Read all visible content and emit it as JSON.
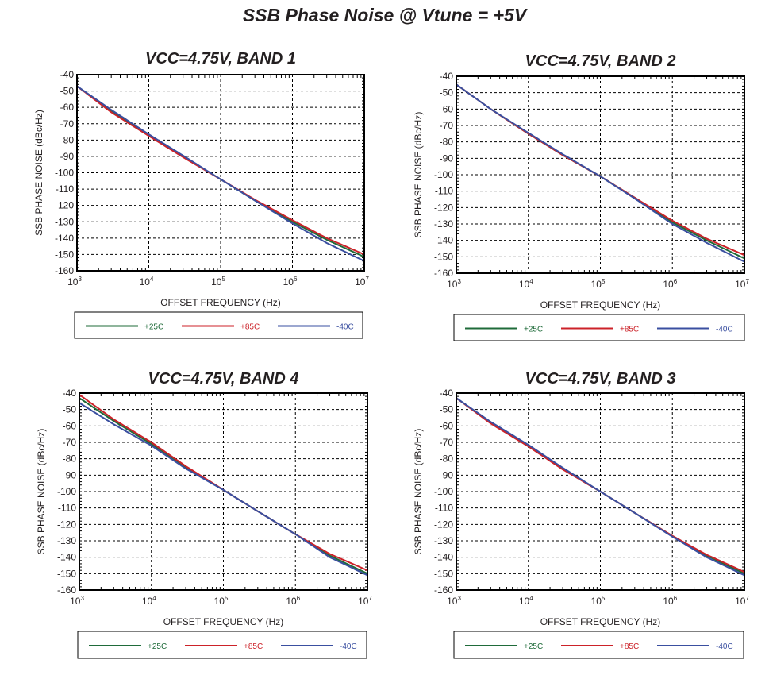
{
  "title": "SSB Phase Noise @ Vtune = +5V",
  "colors": {
    "+25C": "#1f6b3a",
    "+85C": "#cc2229",
    "-40C": "#3a4fa0"
  },
  "chart_data": [
    {
      "type": "line",
      "title": "VCC=4.75V, BAND 1",
      "xlabel": "OFFSET FREQUENCY (Hz)",
      "ylabel": "SSB PHASE NOISE (dBc/Hz)",
      "xscale": "log",
      "xlim": [
        1000,
        10000000
      ],
      "ylim": [
        -160,
        -40
      ],
      "xticks": [
        "10^3",
        "10^4",
        "10^5",
        "10^6",
        "10^7"
      ],
      "yticks": [
        -40,
        -50,
        -60,
        -70,
        -80,
        -90,
        -100,
        -110,
        -120,
        -130,
        -140,
        -150,
        -160
      ],
      "grid": true,
      "legend": "bottom",
      "x": [
        1000,
        3000,
        10000,
        30000,
        100000,
        300000,
        1000000,
        3000000,
        10000000
      ],
      "series": [
        {
          "name": "+25C",
          "values": [
            -47,
            -62,
            -77,
            -90,
            -104,
            -117,
            -130,
            -141,
            -151.5
          ]
        },
        {
          "name": "+85C",
          "values": [
            -47,
            -63,
            -77.5,
            -90.5,
            -104,
            -116.5,
            -129,
            -140,
            -150
          ]
        },
        {
          "name": "-40C",
          "values": [
            -47,
            -61.5,
            -76.5,
            -89.5,
            -104,
            -117,
            -131,
            -143,
            -154
          ]
        }
      ]
    },
    {
      "type": "line",
      "title": "VCC=4.75V, BAND 2",
      "xlabel": "OFFSET FREQUENCY (Hz)",
      "ylabel": "SSB PHASE NOISE (dBc/Hz)",
      "xscale": "log",
      "xlim": [
        1000,
        10000000
      ],
      "ylim": [
        -160,
        -40
      ],
      "xticks": [
        "10^3",
        "10^4",
        "10^5",
        "10^6",
        "10^7"
      ],
      "yticks": [
        -40,
        -50,
        -60,
        -70,
        -80,
        -90,
        -100,
        -110,
        -120,
        -130,
        -140,
        -150,
        -160
      ],
      "grid": true,
      "legend": "bottom",
      "x": [
        1000,
        3000,
        10000,
        30000,
        100000,
        300000,
        1000000,
        3000000,
        10000000
      ],
      "series": [
        {
          "name": "+25C",
          "values": [
            -45,
            -60,
            -75,
            -88,
            -101,
            -114,
            -129,
            -140,
            -151
          ]
        },
        {
          "name": "+85C",
          "values": [
            -45,
            -60,
            -75,
            -88,
            -101,
            -114,
            -128,
            -139,
            -149
          ]
        },
        {
          "name": "-40C",
          "values": [
            -45,
            -60,
            -74.5,
            -87.5,
            -101,
            -114.5,
            -130,
            -141.5,
            -153
          ]
        }
      ]
    },
    {
      "type": "line",
      "title": "VCC=4.75V, BAND 4",
      "xlabel": "OFFSET FREQUENCY (Hz)",
      "ylabel": "SSB PHASE NOISE (dBc/Hz)",
      "xscale": "log",
      "xlim": [
        1000,
        10000000
      ],
      "ylim": [
        -160,
        -40
      ],
      "xticks": [
        "10^3",
        "10^4",
        "10^5",
        "10^6",
        "10^7"
      ],
      "yticks": [
        -40,
        -50,
        -60,
        -70,
        -80,
        -90,
        -100,
        -110,
        -120,
        -130,
        -140,
        -150,
        -160
      ],
      "grid": true,
      "legend": "bottom",
      "x": [
        1000,
        3000,
        10000,
        30000,
        100000,
        300000,
        1000000,
        3000000,
        10000000
      ],
      "series": [
        {
          "name": "+25C",
          "values": [
            -43,
            -57,
            -71,
            -85,
            -99,
            -112,
            -126,
            -139,
            -150
          ]
        },
        {
          "name": "+85C",
          "values": [
            -41,
            -56,
            -70,
            -84.5,
            -99,
            -112,
            -126,
            -138,
            -148
          ]
        },
        {
          "name": "-40C",
          "values": [
            -46,
            -59,
            -72,
            -86,
            -99,
            -112,
            -126,
            -140,
            -151
          ]
        }
      ]
    },
    {
      "type": "line",
      "title": "VCC=4.75V, BAND 3",
      "xlabel": "OFFSET FREQUENCY (Hz)",
      "ylabel": "SSB PHASE NOISE (dBc/Hz)",
      "xscale": "log",
      "xlim": [
        1000,
        10000000
      ],
      "ylim": [
        -160,
        -40
      ],
      "xticks": [
        "10^3",
        "10^4",
        "10^5",
        "10^6",
        "10^7"
      ],
      "yticks": [
        -40,
        -50,
        -60,
        -70,
        -80,
        -90,
        -100,
        -110,
        -120,
        -130,
        -140,
        -150,
        -160
      ],
      "grid": true,
      "legend": "bottom",
      "x": [
        1000,
        3000,
        10000,
        30000,
        100000,
        300000,
        1000000,
        3000000,
        10000000
      ],
      "series": [
        {
          "name": "+25C",
          "values": [
            -43,
            -58,
            -72,
            -86,
            -100,
            -113,
            -127,
            -139,
            -150
          ]
        },
        {
          "name": "+85C",
          "values": [
            -43,
            -58.5,
            -72.5,
            -86.5,
            -100,
            -113,
            -127,
            -138.5,
            -149
          ]
        },
        {
          "name": "-40C",
          "values": [
            -43,
            -57.5,
            -71.5,
            -85.5,
            -100,
            -113,
            -127.5,
            -140,
            -151
          ]
        }
      ]
    }
  ]
}
